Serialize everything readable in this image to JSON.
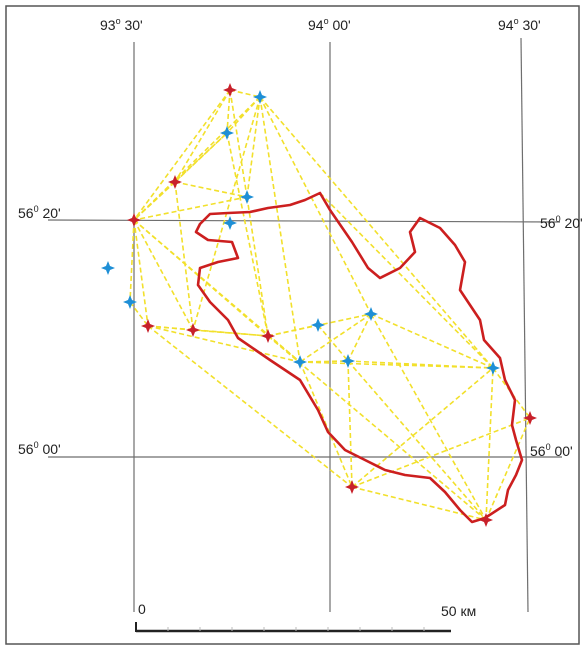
{
  "map": {
    "meridian_labels": [
      {
        "deg": "93",
        "sup": "o",
        "min": "30'"
      },
      {
        "deg": "94",
        "sup": "o",
        "min": "00'"
      },
      {
        "deg": "94",
        "sup": "o",
        "min": "30'"
      }
    ],
    "parallel_labels": [
      {
        "id": "56-20-left",
        "deg": "56",
        "sup": "0",
        "min": "20'"
      },
      {
        "id": "56-20-right",
        "deg": "56",
        "sup": "0",
        "min": "20'"
      },
      {
        "id": "56-00-left",
        "deg": "56",
        "sup": "0",
        "min": "00'"
      },
      {
        "id": "56-00-right",
        "deg": "56",
        "sup": "0",
        "min": "00'"
      }
    ],
    "scale": {
      "start_label": "0",
      "end_label": "50 км"
    },
    "colors": {
      "frame": "#555555",
      "grid": "#6e6e6e",
      "boundary": "#cc1f1f",
      "network": "#f2e02b",
      "station_red": "#c8202a",
      "station_blue": "#1e8fd6"
    }
  }
}
